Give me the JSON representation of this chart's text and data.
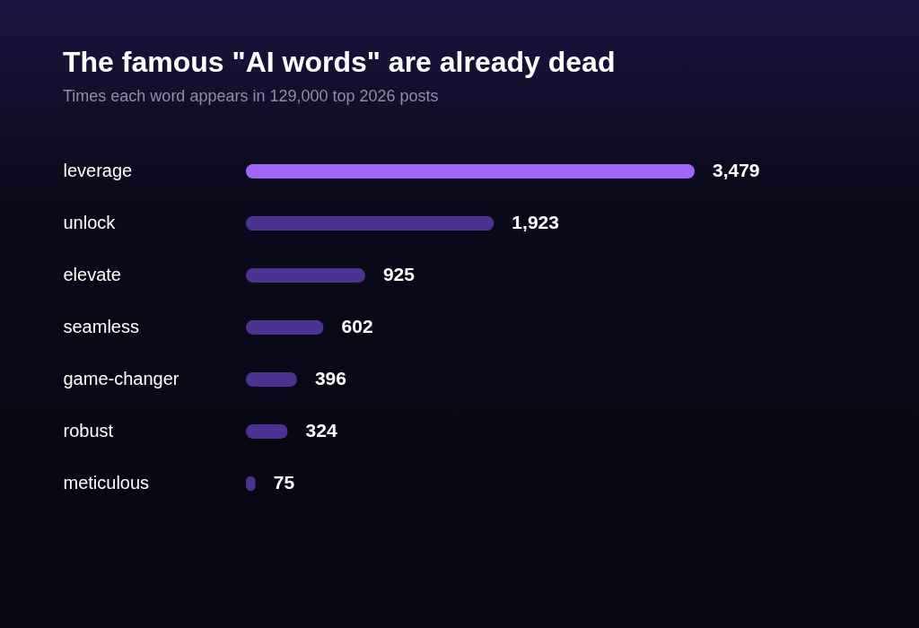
{
  "chart_data": {
    "type": "bar",
    "orientation": "horizontal",
    "title": "The famous \"AI words\" are already dead",
    "subtitle": "Times each word appears in 129,000 top 2026 posts",
    "categories": [
      "leverage",
      "unlock",
      "elevate",
      "seamless",
      "game-changer",
      "robust",
      "meticulous"
    ],
    "values": [
      3479,
      1923,
      925,
      602,
      396,
      324,
      75
    ],
    "colors": [
      "#a264fa",
      "#4d3391",
      "#4d3391",
      "#4d3391",
      "#4d3391",
      "#4d3391",
      "#4d3391"
    ],
    "value_labels": [
      "3,479",
      "1,923",
      "925",
      "602",
      "396",
      "324",
      "75"
    ],
    "grid": false
  }
}
